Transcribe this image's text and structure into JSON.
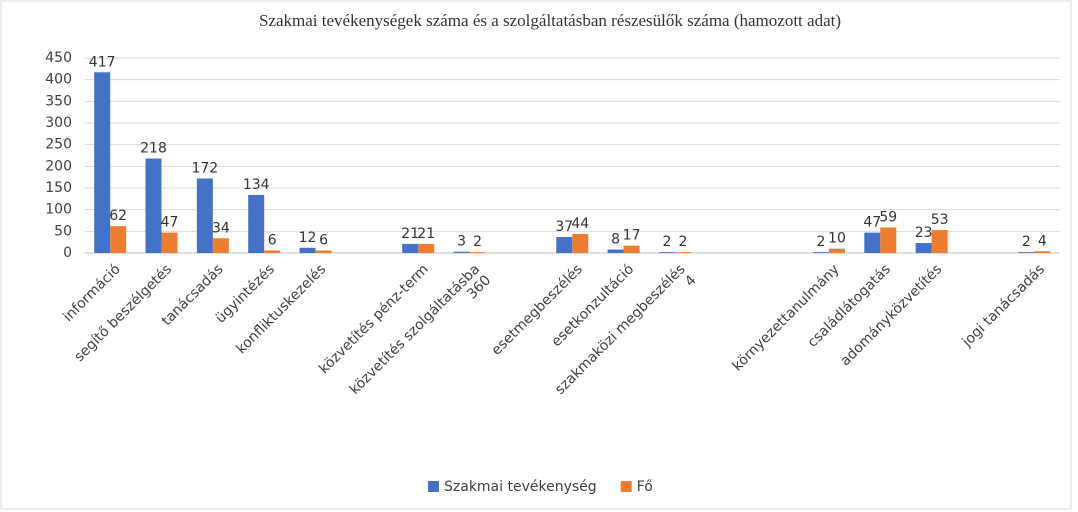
{
  "chart_data": {
    "type": "bar",
    "title": "Szakmai tevékenységek száma és a szolgáltatásban részesülők száma (hamozott adat)",
    "categories": [
      [
        "információ"
      ],
      [
        "segítő beszélgetés"
      ],
      [
        "tanácsadás"
      ],
      [
        "ügyintézés"
      ],
      [
        "konfliktuskezelés"
      ],
      null,
      [
        "közvetítés pénz-term"
      ],
      [
        "közvetítés szolgáltatásba",
        "360"
      ],
      null,
      [
        "esetmegbeszélés"
      ],
      [
        "esetkonzultáció"
      ],
      [
        "szakmaközi megbeszélés",
        "4"
      ],
      null,
      null,
      [
        "környezettanulmány"
      ],
      [
        "családlátogatás"
      ],
      [
        "adományközvetítés"
      ],
      null,
      [
        "jogi tanácsadás"
      ]
    ],
    "series": [
      {
        "name": "Szakmai tevékenység",
        "color": "#4472c4",
        "values": [
          417,
          218,
          172,
          134,
          12,
          null,
          21,
          3,
          null,
          37,
          8,
          2,
          null,
          null,
          2,
          47,
          23,
          null,
          2
        ]
      },
      {
        "name": "Fő",
        "color": "#ed7d31",
        "values": [
          62,
          47,
          34,
          6,
          6,
          null,
          21,
          2,
          null,
          44,
          17,
          2,
          null,
          null,
          10,
          59,
          53,
          null,
          4
        ]
      }
    ],
    "ylim": [
      0,
      450
    ],
    "yticks": [
      0,
      50,
      100,
      150,
      200,
      250,
      300,
      350,
      400,
      450
    ],
    "grid": true,
    "legend": "bottom"
  }
}
